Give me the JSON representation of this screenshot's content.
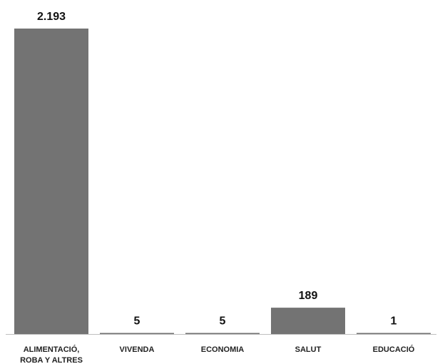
{
  "chart_data": {
    "type": "bar",
    "categories": [
      [
        "ALIMENTACIÓ,",
        "ROBA Y ALTRES"
      ],
      [
        "VIVENDA"
      ],
      [
        "ECONOMIA"
      ],
      [
        "SALUT"
      ],
      [
        "EDUCACIÓ"
      ]
    ],
    "values": [
      2193,
      5,
      5,
      189,
      1
    ],
    "value_labels": [
      "2.193",
      "5",
      "5",
      "189",
      "1"
    ],
    "title": "",
    "xlabel": "",
    "ylabel": "",
    "ylim": [
      0,
      2193
    ],
    "grid": false,
    "legend": "none",
    "bar_color": "#737373",
    "axis_color": "#bfbfbf"
  }
}
